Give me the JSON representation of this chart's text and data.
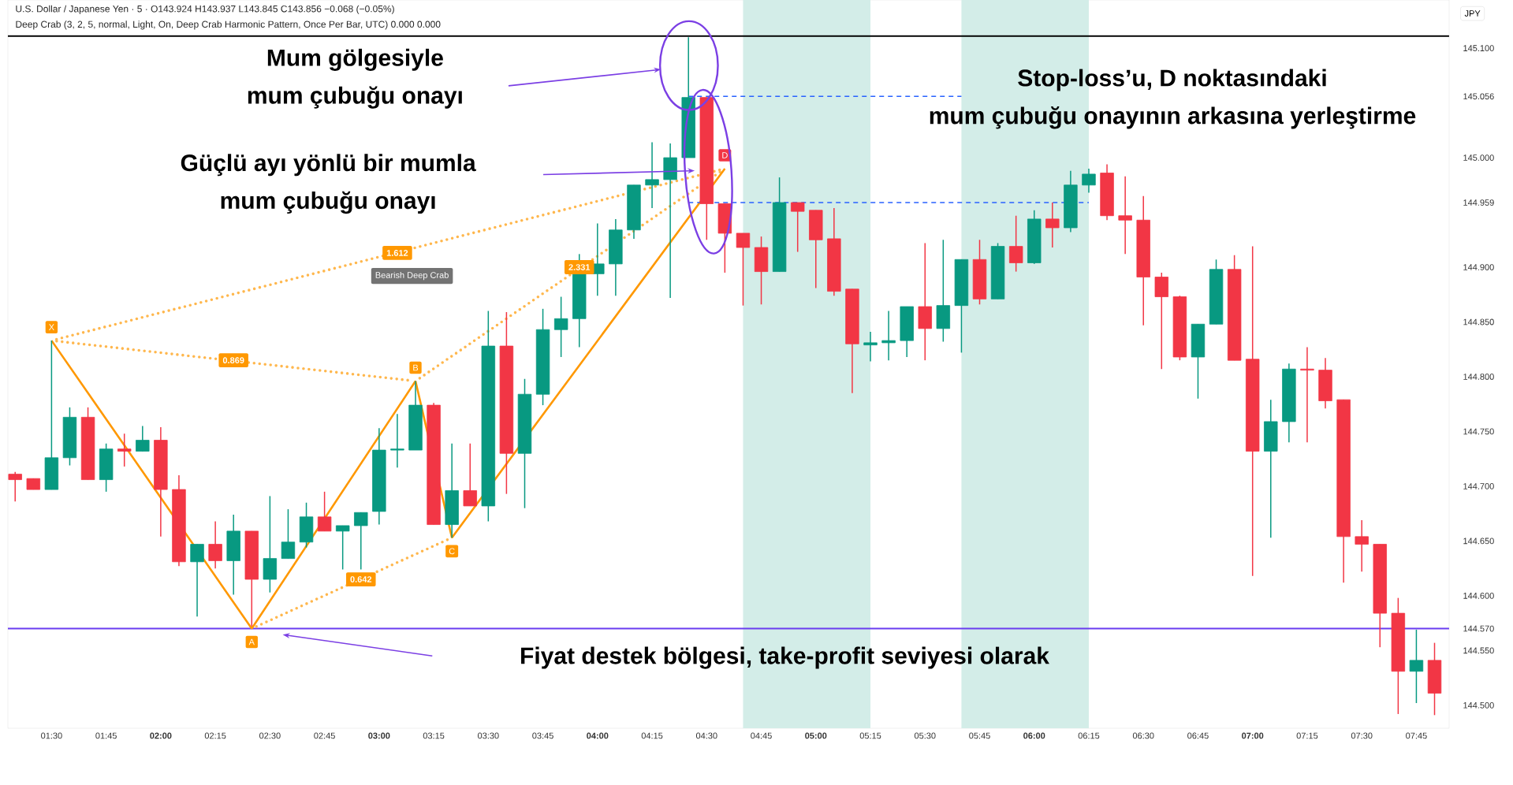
{
  "chart_data": {
    "type": "candlestick",
    "title": "U.S. Dollar / Japanese Yen · 5 · O143.924 H143.937 L143.845 C143.856 −0.068 (−0.05%)",
    "subtitle": "Deep Crab (3, 2, 5, normal, Light, On, Deep Crab Harmonic Pattern, Once Per Bar, UTC) 0.000 0.000",
    "x": [
      1.3333,
      1.4167,
      1.5,
      1.5833,
      1.6667,
      1.75,
      1.8333,
      1.9167,
      2,
      2.0833,
      2.1667,
      2.25,
      2.3333,
      2.4167,
      2.5,
      2.5833,
      2.6667,
      2.75,
      2.8333,
      2.9167,
      3,
      3.0833,
      3.1667,
      3.25,
      3.3333,
      3.4167,
      3.5,
      3.5833,
      3.6667,
      3.75,
      3.8333,
      3.9167,
      4,
      4.0833,
      4.1667,
      4.25,
      4.3333,
      4.4167,
      4.5,
      4.5833,
      4.6667,
      4.75,
      4.8333,
      4.9167,
      5,
      5.0833,
      5.1667,
      5.25,
      5.3333,
      5.4167,
      5.5,
      5.5833,
      5.6667,
      5.75,
      5.8333,
      5.9167,
      6,
      6.0833,
      6.1667,
      6.25,
      6.3333,
      6.4167,
      6.5,
      6.5833,
      6.6667,
      6.75,
      6.8333,
      6.9167,
      7,
      7.0833,
      7.1667,
      7.25,
      7.3333,
      7.4167,
      7.5,
      7.5833,
      7.6667,
      7.75,
      7.8333
    ],
    "ohlc": [
      [
        144.711,
        144.713,
        144.686,
        144.706
      ],
      [
        144.707,
        144.707,
        144.697,
        144.697
      ],
      [
        144.697,
        144.833,
        144.697,
        144.726
      ],
      [
        144.726,
        144.772,
        144.719,
        144.763
      ],
      [
        144.763,
        144.772,
        144.706,
        144.706
      ],
      [
        144.706,
        144.739,
        144.695,
        144.734
      ],
      [
        144.734,
        144.748,
        144.718,
        144.732
      ],
      [
        144.732,
        144.755,
        144.732,
        144.742
      ],
      [
        144.742,
        144.754,
        144.654,
        144.697
      ],
      [
        144.697,
        144.71,
        144.627,
        144.631
      ],
      [
        144.631,
        144.647,
        144.581,
        144.647
      ],
      [
        144.647,
        144.668,
        144.625,
        144.632
      ],
      [
        144.632,
        144.674,
        144.601,
        144.659
      ],
      [
        144.659,
        144.659,
        144.572,
        144.615
      ],
      [
        144.615,
        144.691,
        144.603,
        144.634
      ],
      [
        144.634,
        144.679,
        144.634,
        144.649
      ],
      [
        144.649,
        144.685,
        144.644,
        144.672
      ],
      [
        144.672,
        144.695,
        144.659,
        144.659
      ],
      [
        144.659,
        144.664,
        144.624,
        144.664
      ],
      [
        144.664,
        144.676,
        144.624,
        144.676
      ],
      [
        144.677,
        144.753,
        144.665,
        144.733
      ],
      [
        144.733,
        144.766,
        144.717,
        144.734
      ],
      [
        144.733,
        144.796,
        144.733,
        144.774
      ],
      [
        144.774,
        144.776,
        144.665,
        144.665
      ],
      [
        144.665,
        144.739,
        144.653,
        144.696
      ],
      [
        144.696,
        144.739,
        144.682,
        144.682
      ],
      [
        144.682,
        144.86,
        144.668,
        144.828
      ],
      [
        144.828,
        144.859,
        144.693,
        144.73
      ],
      [
        144.73,
        144.798,
        144.68,
        144.784
      ],
      [
        144.784,
        144.862,
        144.774,
        144.843
      ],
      [
        144.843,
        144.873,
        144.818,
        144.853
      ],
      [
        144.853,
        144.912,
        144.827,
        144.894
      ],
      [
        144.894,
        144.94,
        144.874,
        144.903
      ],
      [
        144.903,
        144.944,
        144.874,
        144.934
      ],
      [
        144.934,
        144.975,
        144.926,
        144.975
      ],
      [
        144.975,
        145.014,
        144.954,
        144.98
      ],
      [
        144.98,
        145.013,
        144.872,
        145.0
      ],
      [
        145.0,
        145.11,
        145.0,
        145.055
      ],
      [
        145.055,
        145.055,
        144.925,
        144.958
      ],
      [
        144.958,
        144.958,
        144.895,
        144.931
      ],
      [
        144.931,
        144.931,
        144.865,
        144.918
      ],
      [
        144.918,
        144.928,
        144.866,
        144.896
      ],
      [
        144.896,
        144.982,
        144.896,
        144.959
      ],
      [
        144.959,
        144.959,
        144.914,
        144.951
      ],
      [
        144.952,
        144.952,
        144.881,
        144.925
      ],
      [
        144.926,
        144.954,
        144.874,
        144.878
      ],
      [
        144.88,
        144.88,
        144.785,
        144.83
      ],
      [
        144.829,
        144.841,
        144.814,
        144.831
      ],
      [
        144.831,
        144.86,
        144.815,
        144.833
      ],
      [
        144.833,
        144.864,
        144.818,
        144.864
      ],
      [
        144.864,
        144.922,
        144.815,
        144.844
      ],
      [
        144.844,
        144.925,
        144.832,
        144.865
      ],
      [
        144.865,
        144.907,
        144.822,
        144.907
      ],
      [
        144.907,
        144.925,
        144.866,
        144.871
      ],
      [
        144.871,
        144.922,
        144.871,
        144.919
      ],
      [
        144.919,
        144.947,
        144.896,
        144.904
      ],
      [
        144.904,
        144.952,
        144.903,
        144.944
      ],
      [
        144.944,
        144.959,
        144.918,
        144.936
      ],
      [
        144.936,
        144.988,
        144.932,
        144.975
      ],
      [
        144.975,
        144.99,
        144.968,
        144.985
      ],
      [
        144.986,
        144.994,
        144.943,
        144.947
      ],
      [
        144.947,
        144.983,
        144.912,
        144.943
      ],
      [
        144.943,
        144.965,
        144.847,
        144.891
      ],
      [
        144.891,
        144.895,
        144.807,
        144.873
      ],
      [
        144.873,
        144.874,
        144.815,
        144.818
      ],
      [
        144.818,
        144.848,
        144.78,
        144.848
      ],
      [
        144.848,
        144.907,
        144.848,
        144.898
      ],
      [
        144.898,
        144.911,
        144.815,
        144.815
      ],
      [
        144.816,
        144.919,
        144.618,
        144.732
      ],
      [
        144.732,
        144.779,
        144.653,
        144.759
      ],
      [
        144.759,
        144.812,
        144.74,
        144.807
      ],
      [
        144.807,
        144.827,
        144.74,
        144.806
      ],
      [
        144.806,
        144.817,
        144.771,
        144.778
      ],
      [
        144.779,
        144.779,
        144.612,
        144.654
      ],
      [
        144.654,
        144.669,
        144.622,
        144.647
      ],
      [
        144.647,
        144.647,
        144.553,
        144.584
      ],
      [
        144.584,
        144.598,
        144.492,
        144.531
      ],
      [
        144.531,
        144.569,
        144.502,
        144.541
      ],
      [
        144.541,
        144.557,
        144.491,
        144.511
      ]
    ],
    "series": [
      {
        "type": "line",
        "x": [
          1.5,
          3.1667
        ],
        "values": [
          144.833,
          144.796
        ],
        "color": "#ffb74d",
        "line_style": "dotted"
      },
      {
        "type": "line",
        "x": [
          2.4167,
          3.3333
        ],
        "values": [
          144.57,
          144.653
        ],
        "color": "#ffb74d",
        "line_style": "dotted"
      },
      {
        "type": "line",
        "x": [
          1.5,
          4.5833
        ],
        "values": [
          144.833,
          144.99
        ],
        "color": "#ffb74d",
        "line_style": "dotted"
      },
      {
        "type": "line",
        "x": [
          3.1667,
          4.5833
        ],
        "values": [
          144.796,
          144.99
        ],
        "color": "#ffb74d",
        "line_style": "dotted"
      },
      {
        "type": "line",
        "x": [
          1.5,
          2.4167,
          3.1667,
          3.3333,
          4.5833
        ],
        "values": [
          144.833,
          144.57,
          144.796,
          144.653,
          144.99
        ],
        "color": "#ff9800",
        "line_style": "solid"
      },
      {
        "type": "line",
        "x": [
          4.4167,
          5.6667
        ],
        "values": [
          145.056,
          145.056
        ],
        "color": "#2962ff",
        "line_style": "dashed"
      },
      {
        "type": "line",
        "x": [
          4.4167,
          6.25
        ],
        "values": [
          144.959,
          144.959
        ],
        "color": "#2962ff",
        "line_style": "dashed"
      }
    ],
    "ref_lines": [
      {
        "axis": "y",
        "value": 145.111,
        "color": "#000000"
      },
      {
        "axis": "y",
        "value": 144.57,
        "color": "#6a3df0"
      }
    ],
    "bands": [
      {
        "axis": "x",
        "from": 4.6667,
        "to": 5.25,
        "color": "#d3ede8"
      },
      {
        "axis": "x",
        "from": 5.6667,
        "to": 6.25,
        "color": "#d3ede8"
      }
    ],
    "annotations": [
      {
        "text": "X",
        "x": 1.5,
        "y": 144.833
      },
      {
        "text": "A",
        "x": 2.4167,
        "y": 144.57
      },
      {
        "text": "B",
        "x": 3.1667,
        "y": 144.796
      },
      {
        "text": "C",
        "x": 3.3333,
        "y": 144.653
      },
      {
        "text": "D",
        "x": 4.5833,
        "y": 144.99
      },
      {
        "text": "0.869",
        "x": 2.3333,
        "y": 144.815
      },
      {
        "text": "0.642",
        "x": 2.9167,
        "y": 144.615
      },
      {
        "text": "1.612",
        "x": 3.0833,
        "y": 144.913
      },
      {
        "text": "2.331",
        "x": 3.9167,
        "y": 144.9
      },
      "Mum gölgesiyle",
      "mum çubuğu onayı",
      "Güçlü ayı yönlü bir mumla",
      "mum çubuğu onayı",
      "Stop-loss’u, D noktasındaki",
      "mum çubuğu onayının arkasına yerleştirme",
      "Fiyat destek bölgesi, take-profit seviyesi olarak",
      "JPY",
      "Bearish Deep Crab"
    ],
    "xlim": [
      1.3,
      7.9
    ],
    "ylim": [
      144.479,
      145.144
    ],
    "xticks": [
      {
        "value": 1.5,
        "label": "01:30"
      },
      {
        "value": 1.75,
        "label": "01:45"
      },
      {
        "value": 2,
        "label": "02:00"
      },
      {
        "value": 2.25,
        "label": "02:15"
      },
      {
        "value": 2.5,
        "label": "02:30"
      },
      {
        "value": 2.75,
        "label": "02:45"
      },
      {
        "value": 3,
        "label": "03:00"
      },
      {
        "value": 3.25,
        "label": "03:15"
      },
      {
        "value": 3.5,
        "label": "03:30"
      },
      {
        "value": 3.75,
        "label": "03:45"
      },
      {
        "value": 4,
        "label": "04:00"
      },
      {
        "value": 4.25,
        "label": "04:15"
      },
      {
        "value": 4.5,
        "label": "04:30"
      },
      {
        "value": 4.75,
        "label": "04:45"
      },
      {
        "value": 5,
        "label": "05:00"
      },
      {
        "value": 5.25,
        "label": "05:15"
      },
      {
        "value": 5.5,
        "label": "05:30"
      },
      {
        "value": 5.75,
        "label": "05:45"
      },
      {
        "value": 6,
        "label": "06:00"
      },
      {
        "value": 6.25,
        "label": "06:15"
      },
      {
        "value": 6.5,
        "label": "06:30"
      },
      {
        "value": 6.75,
        "label": "06:45"
      },
      {
        "value": 7,
        "label": "07:00"
      },
      {
        "value": 7.25,
        "label": "07:15"
      },
      {
        "value": 7.5,
        "label": "07:30"
      },
      {
        "value": 7.75,
        "label": "07:45"
      }
    ],
    "yticks": [
      {
        "value": 144.5,
        "label": "144.500"
      },
      {
        "value": 144.55,
        "label": "144.550"
      },
      {
        "value": 144.57,
        "label": "144.570"
      },
      {
        "value": 144.6,
        "label": "144.600"
      },
      {
        "value": 144.65,
        "label": "144.650"
      },
      {
        "value": 144.7,
        "label": "144.700"
      },
      {
        "value": 144.75,
        "label": "144.750"
      },
      {
        "value": 144.8,
        "label": "144.800"
      },
      {
        "value": 144.85,
        "label": "144.850"
      },
      {
        "value": 144.9,
        "label": "144.900"
      },
      {
        "value": 144.959,
        "label": "144.959"
      },
      {
        "value": 145.0,
        "label": "145.000"
      },
      {
        "value": 145.056,
        "label": "145.056"
      },
      {
        "value": 145.1,
        "label": "145.100"
      }
    ]
  }
}
